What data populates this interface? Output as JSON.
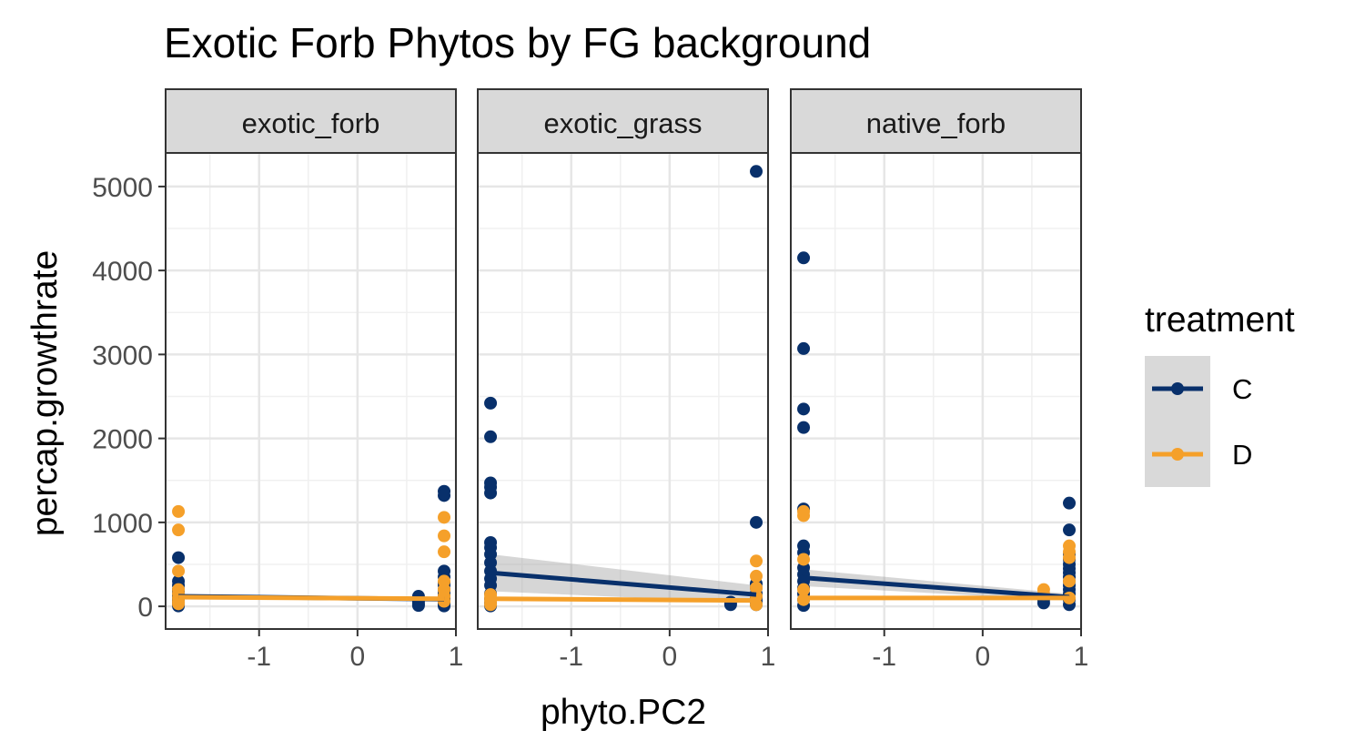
{
  "chart_data": {
    "type": "scatter",
    "title": "Exotic Forb Phytos by FG background",
    "xlabel": "phyto.PC2",
    "ylabel": "percap.growthrate",
    "xlim": [
      -1.95,
      1.0
    ],
    "ylim": [
      -270,
      5400
    ],
    "x_ticks": [
      -1,
      0,
      1
    ],
    "y_ticks": [
      0,
      1000,
      2000,
      3000,
      4000,
      5000
    ],
    "x_tick_labels": [
      "-1",
      "0",
      "1"
    ],
    "y_tick_labels": [
      "0",
      "1000",
      "2000",
      "3000",
      "4000",
      "5000"
    ],
    "grid": true,
    "legend": {
      "title": "treatment",
      "placement": "right",
      "entries": [
        {
          "label": "C",
          "color": "#08306b"
        },
        {
          "label": "D",
          "color": "#f5a02a"
        }
      ]
    },
    "panels": [
      {
        "label": "exotic_forb",
        "series": [
          {
            "name": "C",
            "color": "#08306b",
            "x": [
              -1.82,
              -1.82,
              -1.82,
              -1.82,
              -1.82,
              -1.82,
              -1.82,
              -1.82,
              -1.82,
              -1.82,
              -1.82,
              -1.82,
              -1.82,
              -1.82,
              0.62,
              0.62,
              0.62,
              0.62,
              0.62,
              0.88,
              0.88,
              0.88,
              0.88,
              0.88,
              0.88,
              0.88,
              0.88,
              0.88,
              0.88,
              0.88,
              0.88,
              0.88,
              0.88
            ],
            "y": [
              580,
              300,
              250,
              200,
              180,
              150,
              130,
              110,
              90,
              70,
              50,
              30,
              20,
              5,
              120,
              80,
              60,
              30,
              10,
              1370,
              1320,
              420,
              350,
              280,
              250,
              200,
              160,
              130,
              100,
              70,
              40,
              20,
              5
            ],
            "line": [
              [
                -1.82,
                120
              ],
              [
                0.88,
                85
              ]
            ]
          },
          {
            "name": "D",
            "color": "#f5a02a",
            "x": [
              -1.82,
              -1.82,
              -1.82,
              -1.82,
              -1.82,
              -1.82,
              -1.82,
              -1.82,
              0.88,
              0.88,
              0.88,
              0.88,
              0.88,
              0.88,
              0.88
            ],
            "y": [
              1130,
              910,
              420,
              200,
              150,
              100,
              60,
              30,
              1060,
              840,
              650,
              300,
              200,
              120,
              60
            ],
            "line": [
              [
                -1.82,
                110
              ],
              [
                0.88,
                90
              ]
            ]
          }
        ]
      },
      {
        "label": "exotic_grass",
        "series": [
          {
            "name": "C",
            "color": "#08306b",
            "x": [
              -1.82,
              -1.82,
              -1.82,
              -1.82,
              -1.82,
              -1.82,
              -1.82,
              -1.82,
              -1.82,
              -1.82,
              -1.82,
              -1.82,
              -1.82,
              -1.82,
              -1.82,
              -1.82,
              0.62,
              0.62,
              0.88,
              0.88,
              0.88,
              0.88,
              0.88,
              0.88,
              0.88,
              0.88
            ],
            "y": [
              2420,
              2020,
              1470,
              1420,
              1350,
              760,
              700,
              620,
              520,
              420,
              330,
              250,
              150,
              90,
              40,
              5,
              50,
              20,
              5180,
              1000,
              270,
              220,
              150,
              100,
              60,
              20
            ],
            "line": [
              [
                -1.82,
                400
              ],
              [
                0.88,
                140
              ]
            ],
            "band": [
              [
                -1.82,
                180,
                620
              ],
              [
                0.88,
                40,
                250
              ]
            ]
          },
          {
            "name": "D",
            "color": "#f5a02a",
            "x": [
              -1.82,
              -1.82,
              -1.82,
              -1.82,
              0.88,
              0.88,
              0.88,
              0.88,
              0.88
            ],
            "y": [
              140,
              100,
              60,
              20,
              540,
              360,
              220,
              120,
              20
            ],
            "line": [
              [
                -1.82,
                90
              ],
              [
                0.88,
                70
              ]
            ]
          }
        ]
      },
      {
        "label": "native_forb",
        "series": [
          {
            "name": "C",
            "color": "#08306b",
            "x": [
              -1.82,
              -1.82,
              -1.82,
              -1.82,
              -1.82,
              -1.82,
              -1.82,
              -1.82,
              -1.82,
              -1.82,
              -1.82,
              -1.82,
              -1.82,
              -1.82,
              0.62,
              0.62,
              0.62,
              0.88,
              0.88,
              0.88,
              0.88,
              0.88,
              0.88,
              0.88,
              0.88,
              0.88,
              0.88,
              0.88,
              0.88,
              0.88,
              0.88
            ],
            "y": [
              4150,
              3070,
              2350,
              2130,
              1160,
              720,
              640,
              460,
              380,
              300,
              220,
              150,
              80,
              10,
              120,
              80,
              40,
              1230,
              910,
              620,
              560,
              500,
              450,
              400,
              350,
              300,
              250,
              200,
              150,
              80,
              20
            ],
            "line": [
              [
                -1.82,
                340
              ],
              [
                0.88,
                110
              ]
            ],
            "band": [
              [
                -1.82,
                240,
                440
              ],
              [
                0.88,
                70,
                150
              ]
            ]
          },
          {
            "name": "D",
            "color": "#f5a02a",
            "x": [
              -1.82,
              -1.82,
              -1.82,
              -1.82,
              -1.82,
              0.62,
              0.62,
              0.88,
              0.88,
              0.88,
              0.88,
              0.88
            ],
            "y": [
              1130,
              1080,
              560,
              200,
              80,
              200,
              150,
              720,
              650,
              580,
              300,
              100
            ],
            "line": [
              [
                -1.82,
                100
              ],
              [
                0.88,
                100
              ]
            ]
          }
        ]
      }
    ]
  }
}
